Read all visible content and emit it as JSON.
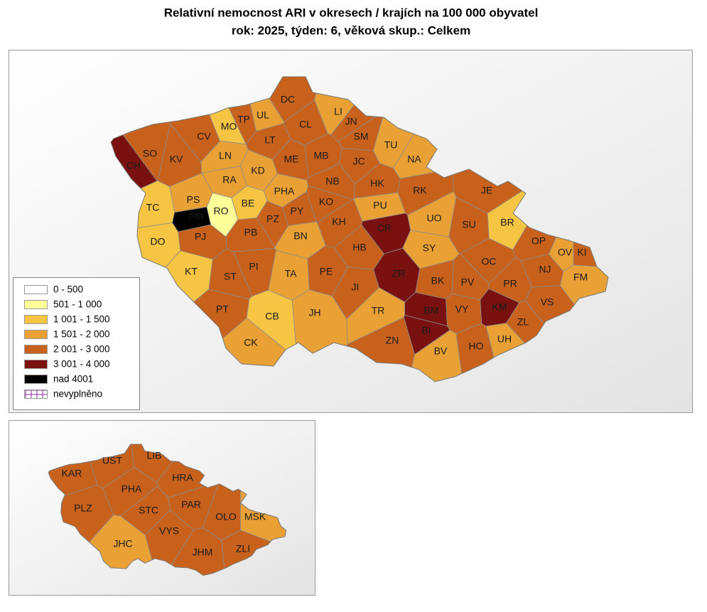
{
  "header": {
    "title": "Relativní nemocnost ARI v okresech / krajích na 100 000 obyvatel",
    "subtitle": "rok: 2025, týden: 6, věková skup.: Celkem"
  },
  "legend": [
    {
      "label": "0 - 500",
      "color": "#ffffff"
    },
    {
      "label": "501 - 1 000",
      "color": "#ffff99"
    },
    {
      "label": "1 001 - 1 500",
      "color": "#f7c544"
    },
    {
      "label": "1 501 - 2 000",
      "color": "#e9a136"
    },
    {
      "label": "2 001 - 3 000",
      "color": "#c8611b"
    },
    {
      "label": "3 001 - 4 000",
      "color": "#7a1111"
    },
    {
      "label": "nad 4001",
      "color": "#000000"
    },
    {
      "label": "nevyplněno",
      "color": "#ffffff"
    }
  ],
  "districts": [
    {
      "label": "DC",
      "class": 4
    },
    {
      "label": "CL",
      "class": 4
    },
    {
      "label": "LI",
      "class": 3
    },
    {
      "label": "JN",
      "class": 4
    },
    {
      "label": "SM",
      "class": 4
    },
    {
      "label": "TU",
      "class": 3
    },
    {
      "label": "NA",
      "class": 3
    },
    {
      "label": "UL",
      "class": 3
    },
    {
      "label": "TP",
      "class": 4
    },
    {
      "label": "MO",
      "class": 2
    },
    {
      "label": "CV",
      "class": 4
    },
    {
      "label": "LT",
      "class": 4
    },
    {
      "label": "SO",
      "class": 4
    },
    {
      "label": "CH",
      "class": 5
    },
    {
      "label": "KV",
      "class": 4
    },
    {
      "label": "LN",
      "class": 3
    },
    {
      "label": "ME",
      "class": 4
    },
    {
      "label": "MB",
      "class": 4
    },
    {
      "label": "JC",
      "class": 4
    },
    {
      "label": "RA",
      "class": 3
    },
    {
      "label": "KD",
      "class": 3
    },
    {
      "label": "NB",
      "class": 4
    },
    {
      "label": "HK",
      "class": 4
    },
    {
      "label": "RK",
      "class": 4
    },
    {
      "label": "JE",
      "class": 4
    },
    {
      "label": "PHA",
      "class": 3
    },
    {
      "label": "PS",
      "class": 3
    },
    {
      "label": "TC",
      "class": 2
    },
    {
      "label": "PM",
      "class": 6
    },
    {
      "label": "RO",
      "class": 1
    },
    {
      "label": "BE",
      "class": 2
    },
    {
      "label": "PY",
      "class": 4
    },
    {
      "label": "PZ",
      "class": 4
    },
    {
      "label": "KO",
      "class": 4
    },
    {
      "label": "PU",
      "class": 3
    },
    {
      "label": "UO",
      "class": 3
    },
    {
      "label": "BR",
      "class": 2
    },
    {
      "label": "SU",
      "class": 4
    },
    {
      "label": "KH",
      "class": 4
    },
    {
      "label": "CR",
      "class": 5
    },
    {
      "label": "PB",
      "class": 4
    },
    {
      "label": "BN",
      "class": 3
    },
    {
      "label": "PJ",
      "class": 4
    },
    {
      "label": "DO",
      "class": 2
    },
    {
      "label": "HB",
      "class": 4
    },
    {
      "label": "SY",
      "class": 3
    },
    {
      "label": "OP",
      "class": 4
    },
    {
      "label": "OV",
      "class": 3
    },
    {
      "label": "KI",
      "class": 4
    },
    {
      "label": "OC",
      "class": 4
    },
    {
      "label": "PI",
      "class": 4
    },
    {
      "label": "TA",
      "class": 3
    },
    {
      "label": "PE",
      "class": 4
    },
    {
      "label": "ZR",
      "class": 5
    },
    {
      "label": "KT",
      "class": 2
    },
    {
      "label": "NJ",
      "class": 4
    },
    {
      "label": "ST",
      "class": 4
    },
    {
      "label": "FM",
      "class": 3
    },
    {
      "label": "BK",
      "class": 4
    },
    {
      "label": "PV",
      "class": 4
    },
    {
      "label": "PR",
      "class": 4
    },
    {
      "label": "JI",
      "class": 4
    },
    {
      "label": "VS",
      "class": 4
    },
    {
      "label": "KM",
      "class": 5
    },
    {
      "label": "BM",
      "class": 5
    },
    {
      "label": "VY",
      "class": 4
    },
    {
      "label": "PT",
      "class": 4
    },
    {
      "label": "TR",
      "class": 3
    },
    {
      "label": "CB",
      "class": 2
    },
    {
      "label": "JH",
      "class": 3
    },
    {
      "label": "ZL",
      "class": 4
    },
    {
      "label": "BI",
      "class": 5
    },
    {
      "label": "UH",
      "class": 3
    },
    {
      "label": "ZN",
      "class": 4
    },
    {
      "label": "CK",
      "class": 3
    },
    {
      "label": "HO",
      "class": 4
    },
    {
      "label": "BV",
      "class": 3
    }
  ],
  "regions": [
    {
      "label": "KAR",
      "class": 4
    },
    {
      "label": "UST",
      "class": 4
    },
    {
      "label": "LIB",
      "class": 4
    },
    {
      "label": "HRA",
      "class": 4
    },
    {
      "label": "PHA",
      "class": 4
    },
    {
      "label": "PLZ",
      "class": 4
    },
    {
      "label": "STC",
      "class": 4
    },
    {
      "label": "PAR",
      "class": 4
    },
    {
      "label": "OLO",
      "class": 4
    },
    {
      "label": "MSK",
      "class": 3
    },
    {
      "label": "JHC",
      "class": 3
    },
    {
      "label": "VYS",
      "class": 4
    },
    {
      "label": "JHM",
      "class": 4
    },
    {
      "label": "ZLI",
      "class": 4
    }
  ]
}
